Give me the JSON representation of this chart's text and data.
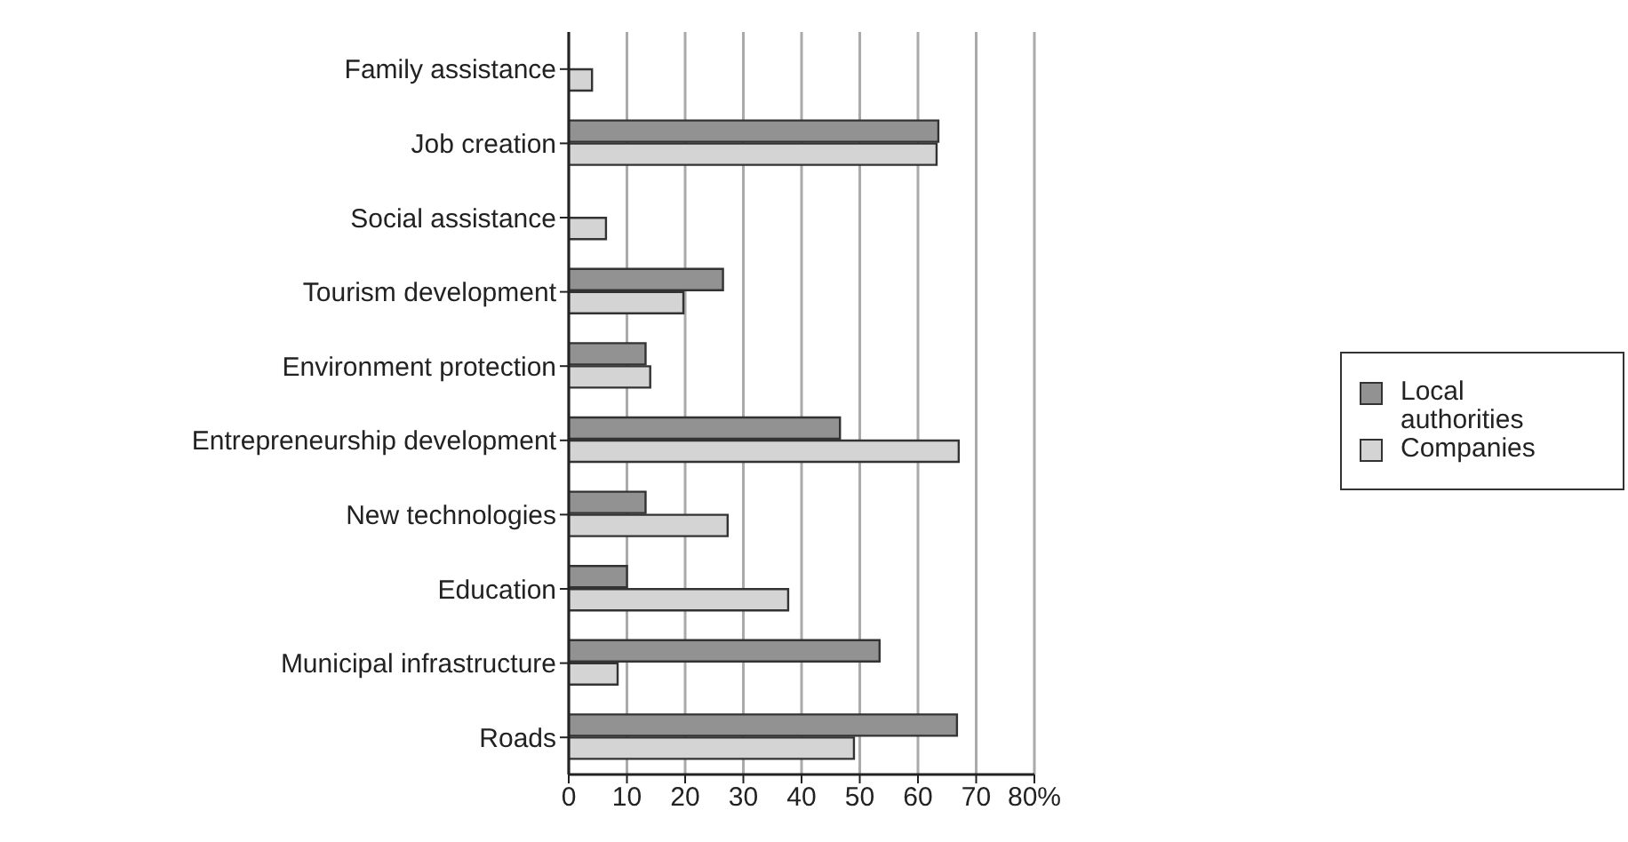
{
  "chart_data": {
    "type": "bar",
    "orientation": "horizontal",
    "categories": [
      "Family assistance",
      "Job creation",
      "Social assistance",
      "Tourism development",
      "Environment protection",
      "Entrepreneurship development",
      "New technologies",
      "Education",
      "Municipal infrastructure",
      "Roads"
    ],
    "series": [
      {
        "name": "Local authorities",
        "color": "#929292",
        "values": [
          null,
          63.5,
          null,
          26.5,
          13.2,
          46.6,
          13.2,
          10,
          53.4,
          66.7
        ]
      },
      {
        "name": "Companies",
        "color": "#d4d4d4",
        "values": [
          4,
          63.2,
          6.4,
          19.7,
          14,
          67,
          27.3,
          37.7,
          8.4,
          49
        ]
      }
    ],
    "xlim": [
      0,
      80
    ],
    "xticks": [
      0,
      10,
      20,
      30,
      40,
      50,
      60,
      70,
      {
        "value": 80,
        "label": "80%"
      }
    ],
    "grid": "x",
    "legend": "right"
  }
}
